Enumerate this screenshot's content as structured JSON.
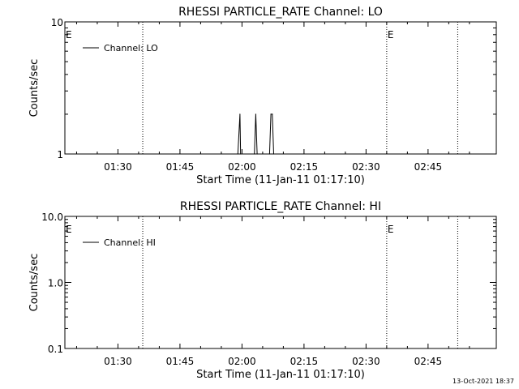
{
  "footer_stamp": "13-Oct-2021 18:37",
  "chart_data": [
    {
      "type": "line",
      "title": "RHESSI PARTICLE_RATE Channel: LO",
      "xlabel": "Start Time (11-Jan-11 01:17:10)",
      "ylabel": "Counts/sec",
      "xlim": [
        "01:17:10",
        "03:01:30"
      ],
      "x_ticks": [
        "01:30",
        "01:45",
        "02:00",
        "02:15",
        "02:30",
        "02:45"
      ],
      "yscale": "log",
      "ylim": [
        1,
        10
      ],
      "y_ticks": [
        {
          "value": 1,
          "label": "1"
        },
        {
          "value": 10,
          "label": "10"
        }
      ],
      "series": [
        {
          "name": "Channel: LO",
          "x": [
            "01:59:00",
            "01:59:30",
            "01:59:40",
            "02:03:00",
            "02:03:20",
            "02:03:40",
            "02:06:40",
            "02:07:00",
            "02:07:20",
            "02:07:40"
          ],
          "values": [
            1,
            2,
            1,
            1,
            2,
            1,
            1,
            2,
            2,
            1
          ]
        }
      ],
      "markers": [
        {
          "time": "01:36:00",
          "label": ""
        },
        {
          "time": "02:35:00",
          "label": "E"
        },
        {
          "time": "02:52:10",
          "label": ""
        }
      ],
      "left_marker_label": "E",
      "legend_location": "upper-left"
    },
    {
      "type": "line",
      "title": "RHESSI PARTICLE_RATE Channel: HI",
      "xlabel": "Start Time (11-Jan-11 01:17:10)",
      "ylabel": "Counts/sec",
      "xlim": [
        "01:17:10",
        "03:01:30"
      ],
      "x_ticks": [
        "01:30",
        "01:45",
        "02:00",
        "02:15",
        "02:30",
        "02:45"
      ],
      "yscale": "log",
      "ylim": [
        0.1,
        10
      ],
      "y_ticks": [
        {
          "value": 0.1,
          "label": "0.1"
        },
        {
          "value": 1,
          "label": "1.0"
        },
        {
          "value": 10,
          "label": "10.0"
        }
      ],
      "series": [
        {
          "name": "Channel: HI",
          "x": [],
          "values": []
        }
      ],
      "markers": [
        {
          "time": "01:36:00",
          "label": ""
        },
        {
          "time": "02:35:00",
          "label": "E"
        },
        {
          "time": "02:52:10",
          "label": ""
        }
      ],
      "left_marker_label": "E",
      "legend_location": "upper-left"
    }
  ]
}
